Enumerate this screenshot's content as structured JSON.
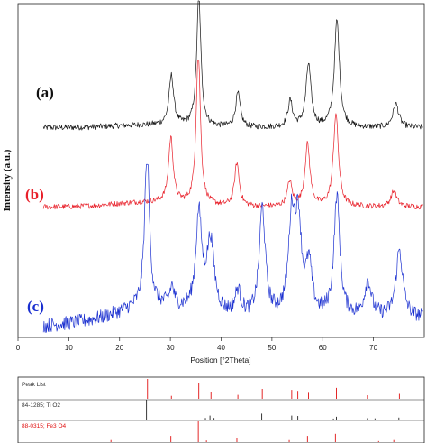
{
  "chart_data": {
    "type": "line",
    "xlabel": "Position [°2Theta]",
    "ylabel": "Intensity (a.u.)",
    "xlim": [
      0,
      80
    ],
    "x_ticks": [
      "0",
      "10",
      "20",
      "30",
      "40",
      "50",
      "60",
      "70"
    ],
    "grid": false,
    "series": [
      {
        "name": "(a)",
        "color": "#111111",
        "baseline": 0.1,
        "peaks": [
          {
            "x": 30.2,
            "h": 0.38,
            "w": 0.55
          },
          {
            "x": 35.6,
            "h": 1.0,
            "w": 0.5
          },
          {
            "x": 43.3,
            "h": 0.26,
            "w": 0.55
          },
          {
            "x": 53.6,
            "h": 0.2,
            "w": 0.55
          },
          {
            "x": 57.2,
            "h": 0.48,
            "w": 0.6
          },
          {
            "x": 62.8,
            "h": 0.82,
            "w": 0.6
          },
          {
            "x": 74.4,
            "h": 0.18,
            "w": 0.7
          }
        ]
      },
      {
        "name": "(b)",
        "color": "#e8202a",
        "baseline": 0.12,
        "peaks": [
          {
            "x": 30.1,
            "h": 0.42,
            "w": 0.55
          },
          {
            "x": 35.5,
            "h": 1.0,
            "w": 0.5
          },
          {
            "x": 43.1,
            "h": 0.28,
            "w": 0.55
          },
          {
            "x": 53.5,
            "h": 0.16,
            "w": 0.55
          },
          {
            "x": 57.0,
            "h": 0.4,
            "w": 0.6
          },
          {
            "x": 62.6,
            "h": 0.6,
            "w": 0.6
          },
          {
            "x": 74.0,
            "h": 0.1,
            "w": 0.7
          }
        ]
      },
      {
        "name": "(c)",
        "color": "#1a2fd0",
        "baseline": 0.06,
        "peaks": [
          {
            "x": 25.4,
            "h": 1.0,
            "w": 0.55
          },
          {
            "x": 30.3,
            "h": 0.12,
            "w": 0.5
          },
          {
            "x": 35.6,
            "h": 0.6,
            "w": 0.7
          },
          {
            "x": 37.9,
            "h": 0.45,
            "w": 0.9
          },
          {
            "x": 43.3,
            "h": 0.15,
            "w": 0.7
          },
          {
            "x": 48.1,
            "h": 0.68,
            "w": 0.7
          },
          {
            "x": 53.9,
            "h": 0.58,
            "w": 0.75
          },
          {
            "x": 55.2,
            "h": 0.55,
            "w": 0.75
          },
          {
            "x": 57.3,
            "h": 0.3,
            "w": 0.7
          },
          {
            "x": 62.8,
            "h": 0.75,
            "w": 0.7
          },
          {
            "x": 68.9,
            "h": 0.22,
            "w": 0.8
          },
          {
            "x": 75.1,
            "h": 0.42,
            "w": 0.8
          }
        ]
      }
    ],
    "reference_patterns": [
      {
        "label": "Peak List",
        "color": "#333333",
        "sticks": [
          {
            "x": 25.5,
            "h": 1.0
          },
          {
            "x": 30.2,
            "h": 0.15
          },
          {
            "x": 35.6,
            "h": 0.8
          },
          {
            "x": 38.0,
            "h": 0.35
          },
          {
            "x": 43.3,
            "h": 0.2
          },
          {
            "x": 48.1,
            "h": 0.5
          },
          {
            "x": 53.9,
            "h": 0.45
          },
          {
            "x": 55.1,
            "h": 0.4
          },
          {
            "x": 57.2,
            "h": 0.3
          },
          {
            "x": 62.7,
            "h": 0.55
          },
          {
            "x": 68.8,
            "h": 0.18
          },
          {
            "x": 75.1,
            "h": 0.25
          }
        ],
        "stick_color": "#e01010"
      },
      {
        "label": "84-1285; Ti O2",
        "color": "#333333",
        "stick_color": "#222222",
        "sticks": [
          {
            "x": 25.3,
            "h": 1.0
          },
          {
            "x": 36.9,
            "h": 0.08
          },
          {
            "x": 37.8,
            "h": 0.2
          },
          {
            "x": 38.6,
            "h": 0.08
          },
          {
            "x": 48.0,
            "h": 0.3
          },
          {
            "x": 53.9,
            "h": 0.2
          },
          {
            "x": 55.1,
            "h": 0.18
          },
          {
            "x": 62.1,
            "h": 0.05
          },
          {
            "x": 62.7,
            "h": 0.14
          },
          {
            "x": 68.8,
            "h": 0.07
          },
          {
            "x": 70.3,
            "h": 0.06
          },
          {
            "x": 75.0,
            "h": 0.1
          }
        ]
      },
      {
        "label": "88-0315; Fe3 O4",
        "color": "#e01010",
        "stick_color": "#e01010",
        "sticks": [
          {
            "x": 18.3,
            "h": 0.1
          },
          {
            "x": 30.1,
            "h": 0.3
          },
          {
            "x": 35.5,
            "h": 1.0
          },
          {
            "x": 37.1,
            "h": 0.08
          },
          {
            "x": 43.1,
            "h": 0.22
          },
          {
            "x": 53.4,
            "h": 0.1
          },
          {
            "x": 57.0,
            "h": 0.3
          },
          {
            "x": 62.5,
            "h": 0.4
          },
          {
            "x": 71.0,
            "h": 0.05
          },
          {
            "x": 74.0,
            "h": 0.1
          }
        ]
      }
    ]
  }
}
